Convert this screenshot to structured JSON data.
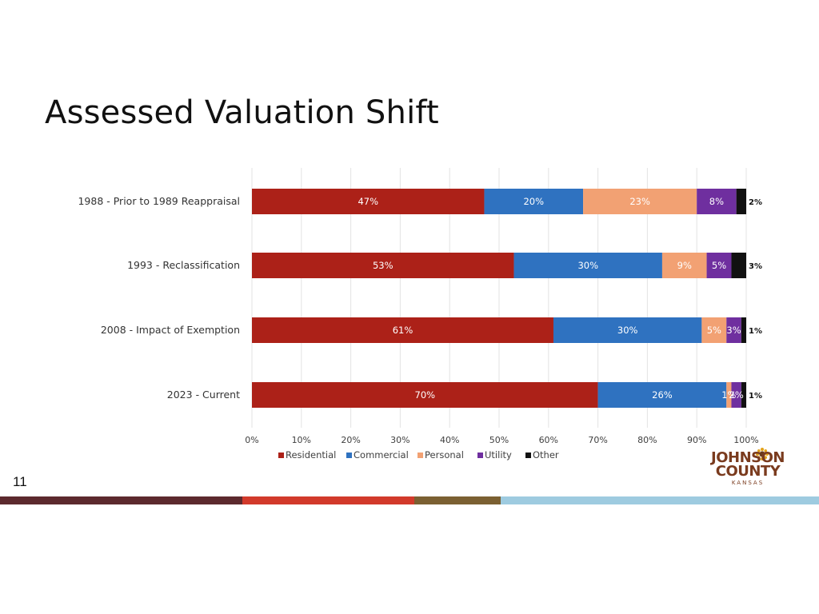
{
  "slide": {
    "title": "Assessed Valuation Shift",
    "number": "11",
    "footer_colors": [
      "#5c2a2e",
      "#d23a2b",
      "#7b6032",
      "#9ecbe0"
    ]
  },
  "logo": {
    "line1": "JOHNSON",
    "line2": "COUNTY",
    "line3": "KANSAS",
    "icon": "sunflower-icon",
    "color": "#7a3b1e"
  },
  "chart_data": {
    "type": "bar",
    "orientation": "horizontal",
    "stacked": true,
    "categories": [
      "1988 - Prior to 1989 Reappraisal",
      "1993 - Reclassification",
      "2008 - Impact of Exemption",
      "2023 - Current"
    ],
    "series": [
      {
        "name": "Residential",
        "color": "#ac2118",
        "values": [
          47,
          53,
          61,
          70
        ]
      },
      {
        "name": "Commercial",
        "color": "#2f72c0",
        "values": [
          20,
          30,
          30,
          26
        ]
      },
      {
        "name": "Personal",
        "color": "#f2a173",
        "values": [
          23,
          9,
          5,
          1
        ]
      },
      {
        "name": "Utility",
        "color": "#6f2f9f",
        "values": [
          8,
          5,
          3,
          2
        ]
      },
      {
        "name": "Other",
        "color": "#111111",
        "values": [
          2,
          3,
          1,
          1
        ]
      }
    ],
    "data_labels": [
      [
        "47%",
        "20%",
        "23%",
        "8%",
        "2%"
      ],
      [
        "53%",
        "30%",
        "9%",
        "5%",
        "3%"
      ],
      [
        "61%",
        "30%",
        "5%",
        "3%",
        "1%"
      ],
      [
        "70%",
        "26%",
        "1%",
        "2%",
        "1%"
      ]
    ],
    "xticks": [
      "0%",
      "10%",
      "20%",
      "30%",
      "40%",
      "50%",
      "60%",
      "70%",
      "80%",
      "90%",
      "100%"
    ],
    "xlim": [
      0,
      100
    ],
    "grid": true,
    "legend_position": "bottom"
  }
}
